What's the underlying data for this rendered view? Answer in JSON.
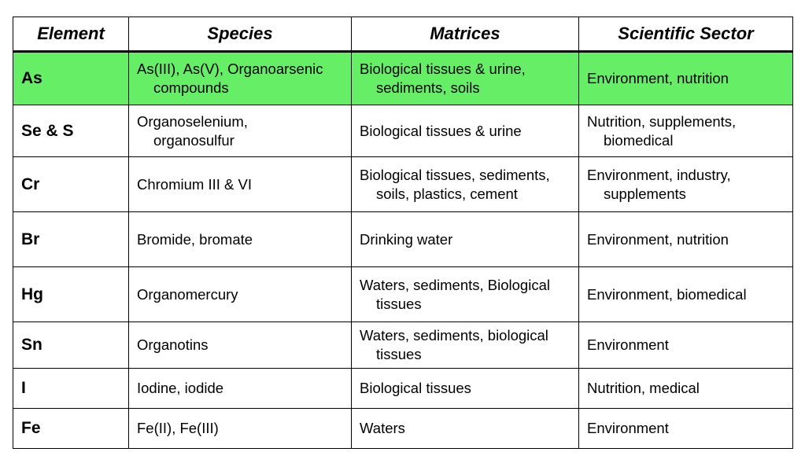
{
  "table": {
    "headers": {
      "element": "Element",
      "species": "Species",
      "matrices": "Matrices",
      "sector": "Scientific Sector"
    },
    "highlight_color": "#66ee66",
    "rows": [
      {
        "element": "As",
        "species": [
          "As(III), As(V), Organoarsenic",
          "compounds"
        ],
        "matrices": [
          "Biological tissues & urine,",
          "sediments, soils"
        ],
        "sector": [
          "Environment, nutrition"
        ]
      },
      {
        "element": "Se & S",
        "species": [
          "Organoselenium,",
          "organosulfur"
        ],
        "matrices": [
          "Biological tissues & urine"
        ],
        "sector": [
          "Nutrition, supplements,",
          "biomedical"
        ]
      },
      {
        "element": "Cr",
        "species": [
          "Chromium III & VI"
        ],
        "matrices": [
          "Biological tissues, sediments,",
          "soils, plastics, cement"
        ],
        "sector": [
          "Environment, industry,",
          "supplements"
        ]
      },
      {
        "element": "Br",
        "species": [
          "Bromide, bromate"
        ],
        "matrices": [
          "Drinking water"
        ],
        "sector": [
          "Environment, nutrition"
        ]
      },
      {
        "element": "Hg",
        "species": [
          "Organomercury"
        ],
        "matrices": [
          "Waters, sediments, Biological",
          "tissues"
        ],
        "sector": [
          "Environment, biomedical"
        ]
      },
      {
        "element": "Sn",
        "species": [
          "Organotins"
        ],
        "matrices": [
          "Waters, sediments, biological",
          "tissues"
        ],
        "sector": [
          "Environment"
        ]
      },
      {
        "element": "I",
        "species": [
          "Iodine, iodide"
        ],
        "matrices": [
          "Biological tissues"
        ],
        "sector": [
          "Nutrition, medical"
        ]
      },
      {
        "element": "Fe",
        "species": [
          "Fe(II), Fe(III)"
        ],
        "matrices": [
          "Waters"
        ],
        "sector": [
          "Environment"
        ]
      }
    ]
  }
}
